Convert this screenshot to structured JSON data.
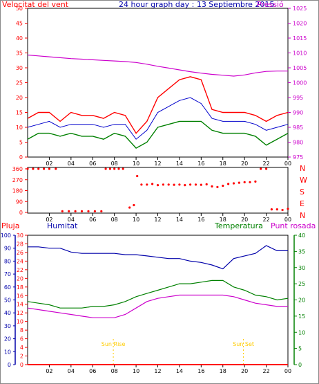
{
  "title": "24 hour graph day : 13 Septiembre 2015",
  "colors": {
    "wind": "#ff0000",
    "wind_avg": "#0000cc",
    "wind_min": "#008000",
    "pressure": "#cc00cc",
    "direction": "#ff0000",
    "rain": "#ff0000",
    "humidity": "#0000aa",
    "temperature": "#008000",
    "dewpoint": "#cc00cc",
    "sun": "#ffcc00"
  },
  "labels": {
    "wind": "Velocitat del vent",
    "pressure": "Pressió",
    "rain": "Pluja",
    "humidity": "Humitat",
    "temperature": "Temperatura",
    "dewpoint": "Punt rosada",
    "sunrise": "Sun Rise",
    "sunset": "Sun Set",
    "compass": [
      "N",
      "W",
      "S",
      "E",
      "N"
    ]
  },
  "chart_data": [
    {
      "type": "line",
      "title": "24 hour graph day : 13 Septiembre 2015",
      "x_ticks": [
        "02",
        "04",
        "06",
        "08",
        "10",
        "12",
        "14",
        "16",
        "18",
        "20",
        "22",
        "00"
      ],
      "y_left": {
        "label": "Velocitat del vent",
        "ticks": [
          0,
          5,
          10,
          15,
          20,
          25,
          30,
          35,
          40,
          45,
          50
        ],
        "lim": [
          0,
          50
        ]
      },
      "y_right": {
        "label": "Pressió",
        "ticks": [
          975,
          980,
          985,
          990,
          995,
          1000,
          1005,
          1010,
          1015,
          1020,
          1025
        ],
        "lim": [
          975,
          1025
        ]
      },
      "x_hours": [
        0,
        1,
        2,
        3,
        4,
        5,
        6,
        7,
        8,
        9,
        10,
        11,
        12,
        13,
        14,
        15,
        16,
        17,
        18,
        19,
        20,
        21,
        22,
        23,
        24
      ],
      "series": [
        {
          "name": "Velocitat del vent",
          "axis": "left",
          "values": [
            13,
            15,
            15,
            12,
            15,
            14,
            14,
            13,
            15,
            14,
            8,
            12,
            20,
            23,
            26,
            27,
            26,
            16,
            15,
            15,
            15,
            14,
            12,
            14,
            15
          ]
        },
        {
          "name": "wind avg",
          "axis": "left",
          "values": [
            10,
            11,
            12,
            10,
            11,
            11,
            11,
            10,
            11,
            11,
            6,
            9,
            15,
            17,
            19,
            20,
            18,
            13,
            12,
            12,
            12,
            11,
            9,
            10,
            11
          ]
        },
        {
          "name": "wind min",
          "axis": "left",
          "values": [
            6,
            8,
            8,
            7,
            8,
            7,
            7,
            6,
            8,
            7,
            3,
            5,
            10,
            11,
            12,
            12,
            12,
            9,
            8,
            8,
            8,
            7,
            4,
            6,
            8
          ]
        },
        {
          "name": "Pressió",
          "axis": "right",
          "values": [
            1009.3,
            1009.0,
            1008.7,
            1008.4,
            1008.1,
            1007.9,
            1007.7,
            1007.5,
            1007.3,
            1007.1,
            1006.8,
            1006.2,
            1005.5,
            1004.9,
            1004.3,
            1003.7,
            1003.2,
            1002.8,
            1002.5,
            1002.2,
            1002.6,
            1003.3,
            1003.8,
            1003.9,
            1003.9
          ]
        }
      ]
    },
    {
      "type": "scatter",
      "y_ticks": [
        0,
        90,
        180,
        270,
        360
      ],
      "y_lim": [
        0,
        360
      ],
      "x_ticks": [
        "02",
        "04",
        "06",
        "08",
        "10",
        "12",
        "14",
        "16",
        "18",
        "20",
        "22",
        "00"
      ],
      "series": [
        {
          "name": "wind direction",
          "points": [
            [
              0,
              360
            ],
            [
              0.5,
              360
            ],
            [
              1,
              360
            ],
            [
              1.5,
              360
            ],
            [
              2,
              360
            ],
            [
              2.6,
              360
            ],
            [
              3.2,
              10
            ],
            [
              3.8,
              10
            ],
            [
              4.4,
              10
            ],
            [
              5.0,
              10
            ],
            [
              5.6,
              10
            ],
            [
              6.2,
              10
            ],
            [
              6.8,
              10
            ],
            [
              7.2,
              360
            ],
            [
              7.6,
              360
            ],
            [
              8.0,
              360
            ],
            [
              8.4,
              360
            ],
            [
              8.8,
              360
            ],
            [
              9.4,
              40
            ],
            [
              9.8,
              60
            ],
            [
              10.1,
              300
            ],
            [
              10.5,
              230
            ],
            [
              11,
              230
            ],
            [
              11.5,
              235
            ],
            [
              12,
              225
            ],
            [
              12.5,
              230
            ],
            [
              13,
              230
            ],
            [
              13.5,
              228
            ],
            [
              14,
              230
            ],
            [
              14.5,
              225
            ],
            [
              15,
              230
            ],
            [
              15.5,
              230
            ],
            [
              16,
              228
            ],
            [
              16.5,
              232
            ],
            [
              17,
              215
            ],
            [
              17.5,
              210
            ],
            [
              18,
              220
            ],
            [
              18.5,
              235
            ],
            [
              19,
              240
            ],
            [
              19.5,
              245
            ],
            [
              20,
              250
            ],
            [
              20.5,
              250
            ],
            [
              21,
              255
            ],
            [
              21.5,
              360
            ],
            [
              22,
              360
            ],
            [
              22.5,
              25
            ],
            [
              23,
              25
            ],
            [
              23.5,
              20
            ],
            [
              24,
              30
            ]
          ]
        }
      ]
    },
    {
      "type": "line",
      "x_ticks": [
        "02",
        "04",
        "06",
        "08",
        "10",
        "12",
        "14",
        "16",
        "18",
        "20",
        "22",
        "00"
      ],
      "y_left_rain": {
        "label": "Pluja",
        "ticks": [
          0,
          2,
          4,
          6,
          8,
          10,
          12,
          14,
          16,
          18,
          20,
          22,
          24,
          26,
          28,
          30
        ],
        "lim": [
          0,
          30
        ]
      },
      "y_left_hum": {
        "label": "Humitat",
        "ticks": [
          0,
          10,
          20,
          30,
          40,
          50,
          60,
          70,
          80,
          90,
          100
        ],
        "lim": [
          0,
          100
        ]
      },
      "y_right": {
        "label": "Temperatura",
        "ticks": [
          0,
          5,
          10,
          15,
          20,
          25,
          30,
          35,
          40
        ],
        "lim": [
          0,
          40
        ]
      },
      "x_hours": [
        0,
        1,
        2,
        3,
        4,
        5,
        6,
        7,
        8,
        9,
        10,
        11,
        12,
        13,
        14,
        15,
        16,
        17,
        18,
        19,
        20,
        21,
        22,
        23,
        24
      ],
      "series": [
        {
          "name": "Humitat",
          "axis": "hum",
          "values": [
            91,
            91,
            90,
            90,
            87,
            86,
            86,
            86,
            86,
            85,
            85,
            84,
            83,
            82,
            82,
            80,
            79,
            77,
            74,
            82,
            84,
            86,
            92,
            88,
            88
          ]
        },
        {
          "name": "Temperatura",
          "axis": "right",
          "values": [
            19.5,
            19,
            18.5,
            17.5,
            17.5,
            17.5,
            18,
            18,
            18.5,
            19.5,
            21,
            22,
            23,
            24,
            25,
            25,
            25.5,
            26,
            26,
            24,
            23,
            21.5,
            21,
            20,
            20.5
          ]
        },
        {
          "name": "Punt rosada",
          "axis": "right",
          "values": [
            17.5,
            17,
            16.5,
            16,
            15.5,
            15,
            14.5,
            14.5,
            14.5,
            15.5,
            17.5,
            19.5,
            20.5,
            21,
            21.5,
            21.5,
            21.5,
            21.5,
            21.5,
            21,
            20,
            19,
            18.5,
            18,
            18
          ]
        },
        {
          "name": "Pluja",
          "axis": "rain",
          "values": [
            0,
            0,
            0,
            0,
            0,
            0,
            0,
            0,
            0,
            0,
            0,
            0,
            0,
            0,
            0,
            0,
            0,
            0,
            0,
            0,
            0,
            0,
            0,
            0,
            0
          ]
        }
      ],
      "annotations": [
        {
          "text": "Sun Rise",
          "x": 7.9
        },
        {
          "text": "Sun Set",
          "x": 19.9
        }
      ]
    }
  ]
}
